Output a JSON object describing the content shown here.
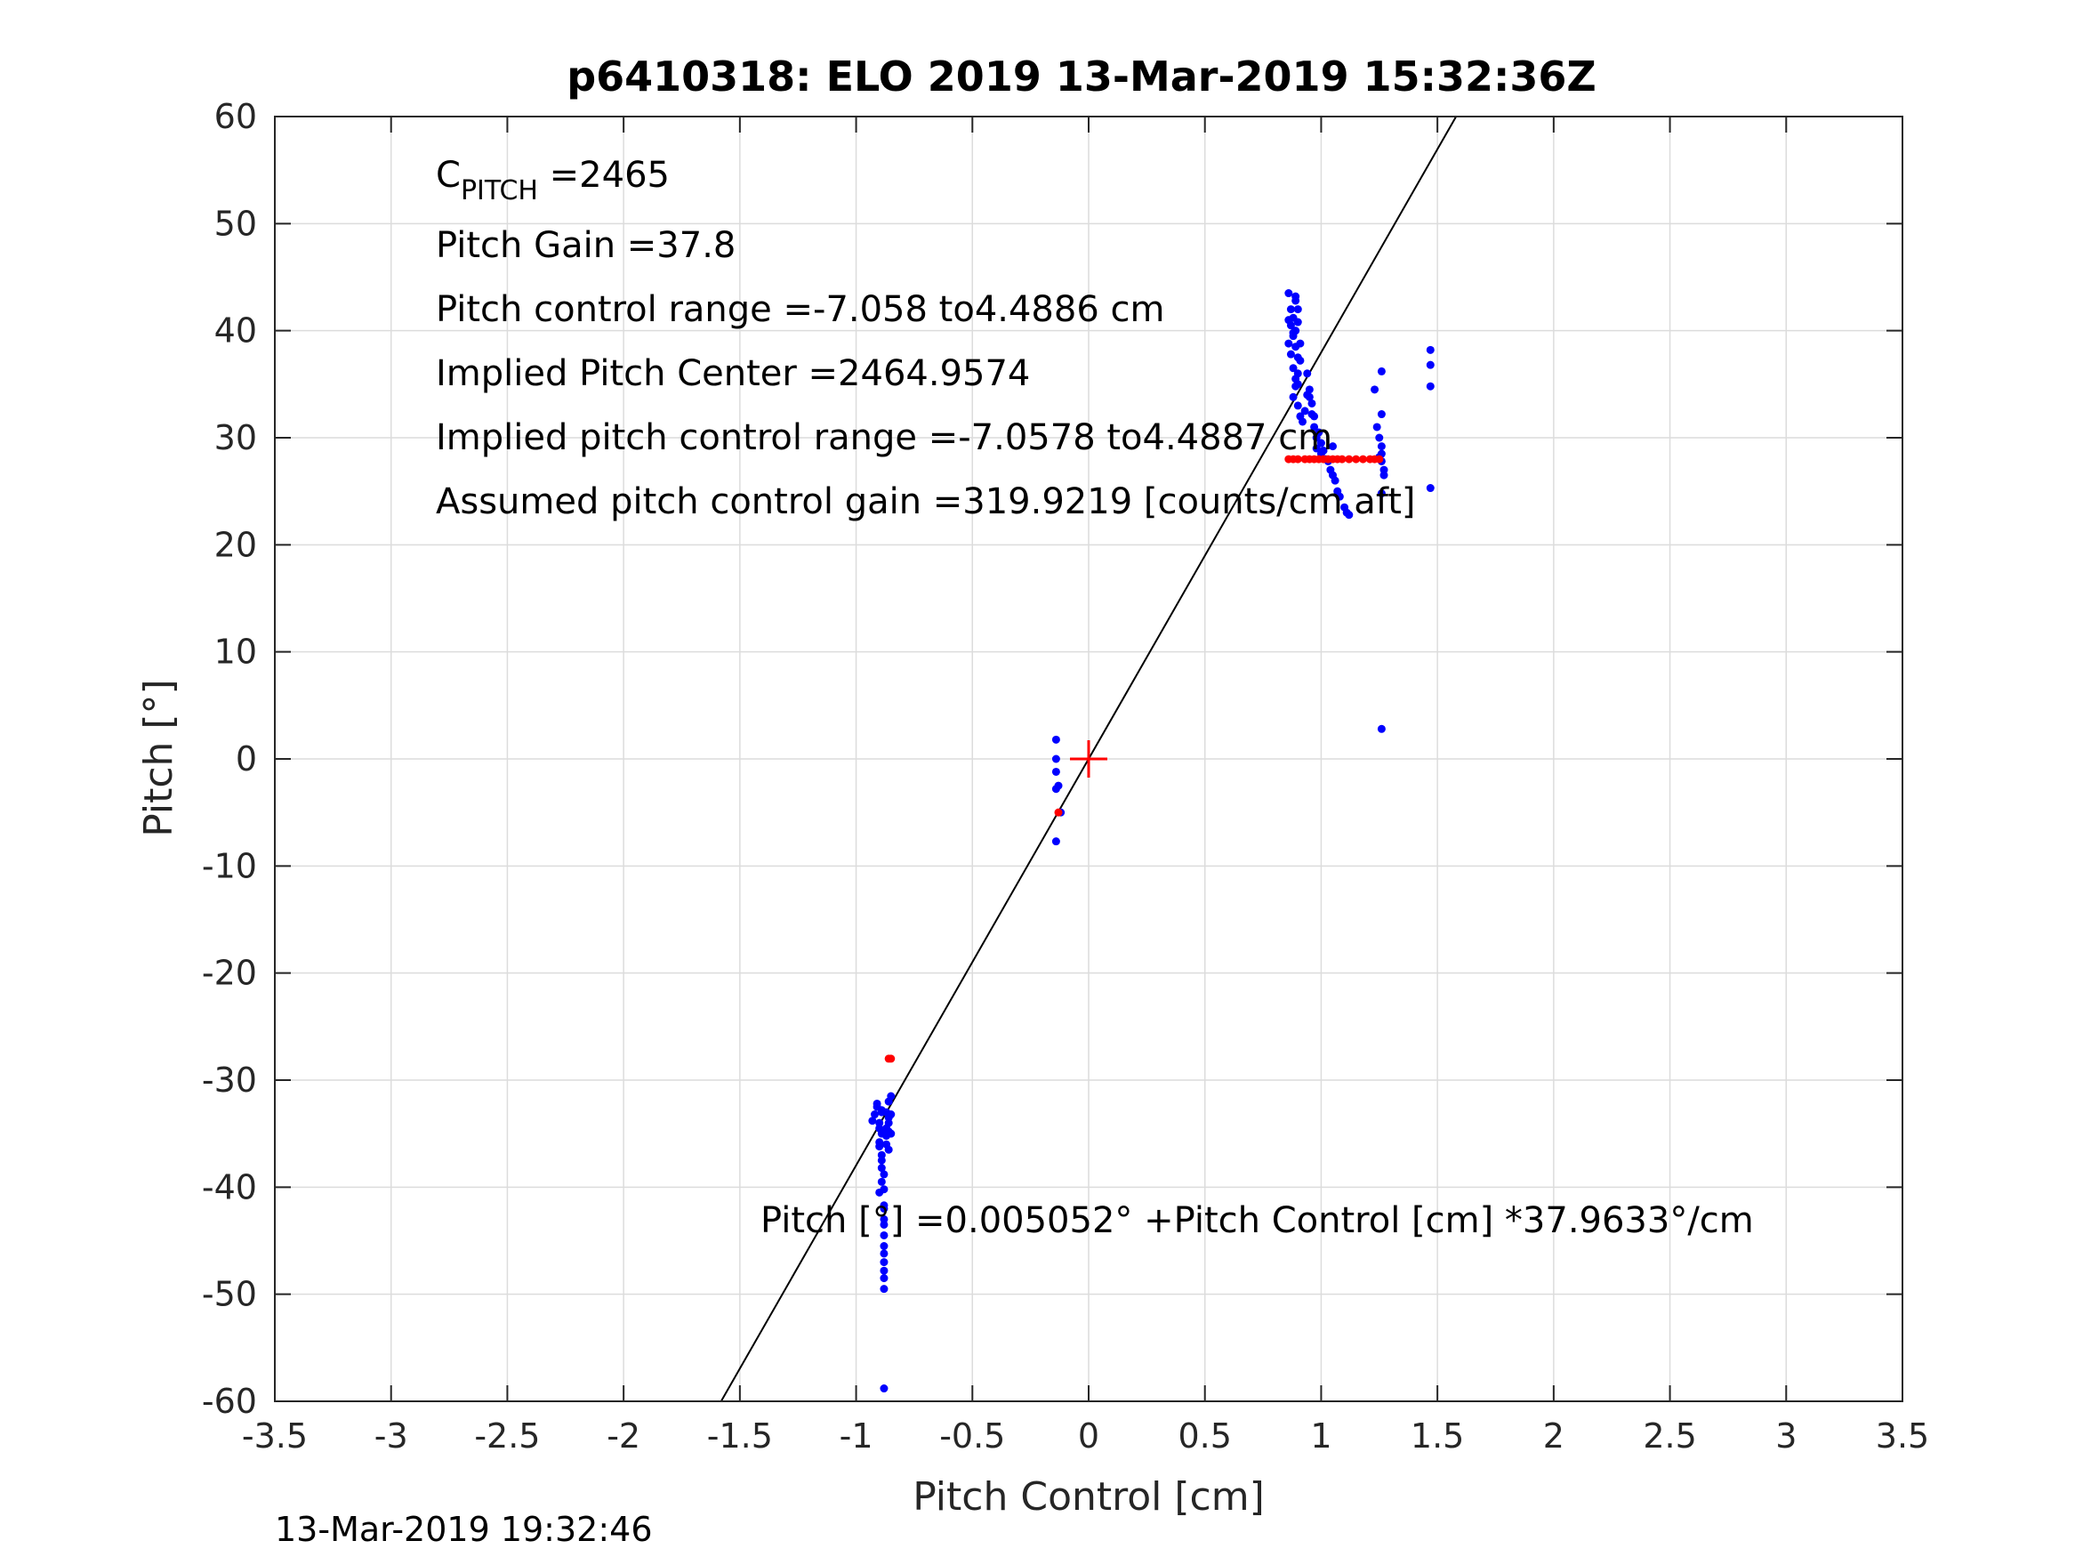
{
  "chart_data": {
    "type": "scatter",
    "title": "p6410318: ELO 2019 13-Mar-2019 15:32:36Z",
    "xlabel": "Pitch Control [cm]",
    "ylabel": "Pitch [°]",
    "xlim": [
      -3.5,
      3.5
    ],
    "ylim": [
      -60,
      60
    ],
    "xticks": [
      -3.5,
      -3,
      -2.5,
      -2,
      -1.5,
      -1,
      -0.5,
      0,
      0.5,
      1,
      1.5,
      2,
      2.5,
      3,
      3.5
    ],
    "xtick_labels": [
      "-3.5",
      "-3",
      "-2.5",
      "-2",
      "-1.5",
      "-1",
      "-0.5",
      "0",
      "0.5",
      "1",
      "1.5",
      "2",
      "2.5",
      "3",
      "3.5"
    ],
    "yticks": [
      -60,
      -50,
      -40,
      -30,
      -20,
      -10,
      0,
      10,
      20,
      30,
      40,
      50,
      60
    ],
    "ytick_labels": [
      "-60",
      "-50",
      "-40",
      "-30",
      "-20",
      "-10",
      "0",
      "10",
      "20",
      "30",
      "40",
      "50",
      "60"
    ],
    "grid": true,
    "fit_line": {
      "intercept": 0.005052,
      "slope": 37.9633,
      "color": "#000000"
    },
    "center_marker": {
      "x": 0,
      "y": 0,
      "color": "#ff0000"
    },
    "series": [
      {
        "color": "#0000ff",
        "x": [
          -0.93,
          -0.92,
          -0.91,
          -0.9,
          -0.9,
          -0.89,
          -0.89,
          -0.89,
          -0.88,
          -0.88,
          -0.88,
          -0.87,
          -0.87,
          -0.87,
          -0.86,
          -0.86,
          -0.86,
          -0.86,
          -0.85,
          -0.85,
          -0.85,
          -0.9,
          -0.9,
          -0.89,
          -0.89,
          -0.89,
          -0.89,
          -0.88,
          -0.88,
          -0.88,
          -0.88,
          -0.88,
          -0.88,
          -0.88,
          -0.88,
          -0.88,
          -0.88,
          -0.91,
          -0.87,
          -0.86,
          -0.9,
          -0.88,
          -0.14,
          -0.14,
          -0.14,
          -0.13,
          -0.14,
          -0.12,
          -0.14,
          0.86,
          0.87,
          0.87,
          0.88,
          0.88,
          0.89,
          0.89,
          0.89,
          0.9,
          0.9,
          0.9,
          0.9,
          0.91,
          0.91,
          0.86,
          0.87,
          0.88,
          0.89,
          0.88,
          0.9,
          0.86,
          0.89,
          0.89,
          0.88,
          0.9,
          0.91,
          0.92,
          0.93,
          0.94,
          0.94,
          0.95,
          0.96,
          0.97,
          0.98,
          0.98,
          1.0,
          1.02,
          1.03,
          1.04,
          1.05,
          1.06,
          1.07,
          1.08,
          1.1,
          1.11,
          1.12,
          0.95,
          0.96,
          0.97,
          0.99,
          1.0,
          1.01,
          1.05,
          1.23,
          1.24,
          1.25,
          1.26,
          1.26,
          1.26,
          1.27,
          1.27,
          1.26,
          1.26,
          1.25,
          1.26,
          1.47,
          1.47,
          1.47,
          1.47,
          1.26
        ],
        "y": [
          -33.8,
          -33.2,
          -32.5,
          -34.5,
          -36.2,
          -35.0,
          -33.0,
          -37.5,
          -38.8,
          -40.2,
          -41.7,
          -36.0,
          -34.5,
          -33.0,
          -32.0,
          -33.5,
          -34.8,
          -36.5,
          -31.5,
          -33.2,
          -35.0,
          -34.0,
          -35.8,
          -32.8,
          -37.0,
          -38.2,
          -39.5,
          -42.0,
          -43.5,
          -44.5,
          -45.5,
          -46.2,
          -47.0,
          -47.8,
          -48.5,
          -49.5,
          -58.8,
          -32.2,
          -35.2,
          -34.0,
          -40.5,
          -43.0,
          1.8,
          0.0,
          -1.2,
          -2.5,
          -2.8,
          -5.0,
          -7.7,
          43.5,
          42.0,
          40.5,
          39.8,
          41.2,
          42.8,
          40.0,
          38.5,
          37.5,
          36.0,
          42.0,
          40.8,
          38.8,
          37.2,
          38.8,
          37.8,
          36.5,
          35.5,
          39.5,
          35.0,
          41.0,
          43.2,
          34.8,
          33.8,
          33.0,
          32.0,
          31.5,
          32.5,
          36.0,
          34.0,
          33.8,
          32.2,
          31.0,
          30.0,
          29.0,
          28.5,
          28.0,
          27.8,
          27.0,
          26.5,
          26.0,
          25.0,
          24.5,
          23.5,
          23.0,
          22.8,
          34.5,
          33.2,
          32.0,
          30.5,
          29.5,
          28.8,
          29.2,
          34.5,
          31.0,
          30.0,
          29.2,
          28.5,
          27.8,
          27.0,
          26.5,
          36.2,
          32.2,
          28.2,
          24.8,
          38.2,
          36.8,
          34.8,
          25.3,
          2.8
        ]
      },
      {
        "color": "#ff0000",
        "x": [
          0.86,
          0.88,
          0.9,
          0.93,
          0.95,
          0.97,
          0.99,
          1.01,
          1.03,
          1.05,
          1.07,
          1.09,
          1.12,
          1.15,
          1.18,
          1.21,
          1.23,
          1.25,
          -0.86,
          -0.85,
          -0.13
        ],
        "y": [
          28,
          28,
          28,
          28,
          28,
          28,
          28,
          28,
          28,
          28,
          28,
          28,
          28,
          28,
          28,
          28,
          28,
          28,
          -28,
          -28,
          -5
        ]
      }
    ],
    "annotations": [
      {
        "main": "C",
        "sub": "PITCH",
        "rest": " =2465"
      },
      {
        "text": "Pitch Gain =37.8"
      },
      {
        "text": "Pitch control range =-7.058 to4.4886 cm"
      },
      {
        "text": "Implied Pitch Center =2464.9574"
      },
      {
        "text": "Implied pitch control range =-7.0578 to4.4887 cm"
      },
      {
        "text": "Assumed pitch control gain =319.9219 [counts/cm aft]"
      },
      {
        "text": "Pitch [°] =0.005052° +Pitch Control [cm] *37.9633°/cm"
      }
    ],
    "timestamp": "13-Mar-2019 19:32:46"
  }
}
